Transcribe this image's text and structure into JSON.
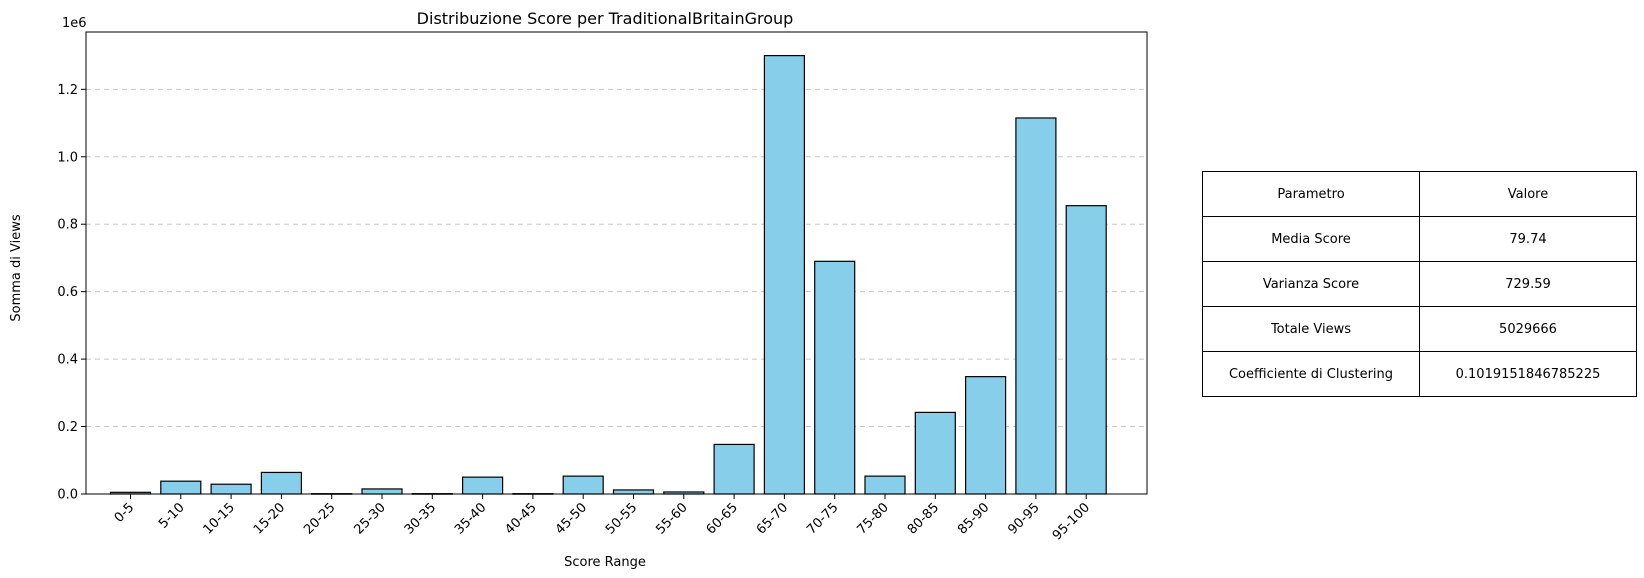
{
  "chart_data": {
    "type": "bar",
    "title": "Distribuzione Score per TraditionalBritainGroup",
    "xlabel": "Score Range",
    "ylabel": "Somma di Views",
    "y_offset_label": "1e6",
    "y_scale": 1000000,
    "ylim": [
      0,
      1370000
    ],
    "yticks": [
      0,
      200000,
      400000,
      600000,
      800000,
      1000000,
      1200000
    ],
    "ytick_labels": [
      "0.0",
      "0.2",
      "0.4",
      "0.6",
      "0.8",
      "1.0",
      "1.2"
    ],
    "grid": "y-dashed",
    "bar_color": "#87CEEB",
    "edge_color": "#000000",
    "categories": [
      "0-5",
      "5-10",
      "10-15",
      "15-20",
      "20-25",
      "25-30",
      "30-35",
      "35-40",
      "40-45",
      "45-50",
      "50-55",
      "55-60",
      "60-65",
      "65-70",
      "70-75",
      "75-80",
      "80-85",
      "85-90",
      "90-95",
      "95-100"
    ],
    "values": [
      5000,
      38000,
      29000,
      64000,
      1000,
      15000,
      1000,
      50000,
      1000,
      53000,
      12000,
      6000,
      147000,
      1300000,
      690000,
      53000,
      242000,
      348000,
      1115000,
      855000
    ]
  },
  "table": {
    "header": [
      "Parametro",
      "Valore"
    ],
    "rows": [
      [
        "Media Score",
        "79.74"
      ],
      [
        "Varianza Score",
        "729.59"
      ],
      [
        "Totale Views",
        "5029666"
      ],
      [
        "Coefficiente di Clustering",
        "0.1019151846785225"
      ]
    ]
  }
}
